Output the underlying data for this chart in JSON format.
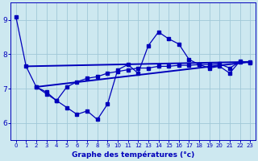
{
  "xlabel": "Graphe des temépratures (°c)",
  "xlabel_display": "Graphe des températures (°c)",
  "x_ticks": [
    0,
    1,
    2,
    3,
    4,
    5,
    6,
    7,
    8,
    9,
    10,
    11,
    12,
    13,
    14,
    15,
    16,
    17,
    18,
    19,
    20,
    21,
    22,
    23
  ],
  "ylim": [
    5.5,
    9.5
  ],
  "yticks": [
    6,
    7,
    8,
    9
  ],
  "background_color": "#cde8f0",
  "line_color": "#0000bb",
  "grid_color": "#a0c8d8",
  "line1_x": [
    0,
    1,
    2,
    3,
    4,
    5,
    6,
    7,
    8,
    9,
    10,
    11,
    12,
    13,
    14,
    15,
    16,
    17,
    18,
    19,
    20,
    21,
    22,
    23
  ],
  "line1_y": [
    9.1,
    7.65,
    7.05,
    6.9,
    6.65,
    6.45,
    6.25,
    6.35,
    6.1,
    6.55,
    7.55,
    7.7,
    7.45,
    8.25,
    8.65,
    8.45,
    8.3,
    7.85,
    7.7,
    7.6,
    7.65,
    7.45,
    7.8,
    7.75
  ],
  "line2_x": [
    2,
    3,
    4,
    5,
    6,
    7,
    8,
    9,
    10,
    11,
    12,
    13,
    14,
    15,
    16,
    17,
    18,
    19,
    20,
    21,
    22,
    23
  ],
  "line2_y": [
    7.05,
    6.85,
    6.65,
    7.05,
    7.2,
    7.3,
    7.35,
    7.45,
    7.5,
    7.55,
    7.6,
    7.6,
    7.65,
    7.65,
    7.68,
    7.68,
    7.7,
    7.7,
    7.72,
    7.6,
    7.78,
    7.78
  ],
  "line3_x": [
    1,
    23
  ],
  "line3_y": [
    7.65,
    7.78
  ],
  "line4_x": [
    2,
    23
  ],
  "line4_y": [
    7.05,
    7.78
  ]
}
